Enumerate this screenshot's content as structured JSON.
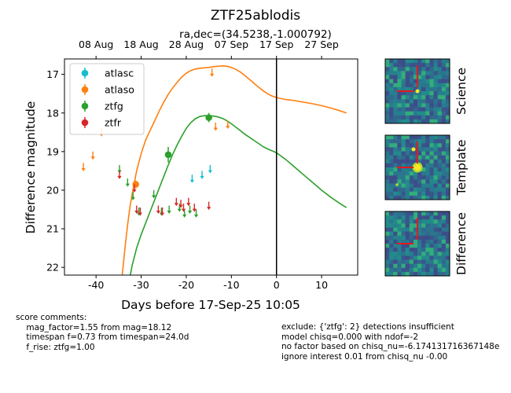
{
  "title": "ZTF25ablodis",
  "subtitle": "ra,dec=(34.5238,-1.000792)",
  "chart_data": {
    "type": "scatter",
    "title": "ZTF25ablodis",
    "subtitle": "ra,dec=(34.5238,-1.000792)",
    "xlabel": "Days before 17-Sep-25 10:05",
    "ylabel": "Difference magnitude",
    "xlim": [
      -47,
      18
    ],
    "ylim": [
      22.2,
      16.6
    ],
    "y_inverted": true,
    "x_ticks": [
      -40,
      -30,
      -20,
      -10,
      0,
      10
    ],
    "y_ticks": [
      17,
      18,
      19,
      20,
      21,
      22
    ],
    "top_axis": {
      "labels": [
        "08 Aug",
        "18 Aug",
        "28 Aug",
        "07 Sep",
        "17 Sep",
        "27 Sep"
      ],
      "positions": [
        -40,
        -30,
        -20,
        -10,
        0,
        10
      ]
    },
    "vline_x": 0,
    "legend": {
      "placement": "top-left",
      "entries": [
        {
          "name": "atlasc",
          "color": "#17becf"
        },
        {
          "name": "atlaso",
          "color": "#ff7f0e"
        },
        {
          "name": "ztfg",
          "color": "#2ca02c"
        },
        {
          "name": "ztfr",
          "color": "#d62728"
        }
      ]
    },
    "series": [
      {
        "name": "atlasc",
        "color": "#17becf",
        "detections": [],
        "upper_limits": [
          {
            "x": -18.7,
            "y": 19.7
          },
          {
            "x": -16.5,
            "y": 19.6
          },
          {
            "x": -14.7,
            "y": 19.45
          }
        ]
      },
      {
        "name": "atlaso",
        "color": "#ff7f0e",
        "detections": [
          {
            "x": -31.2,
            "y": 19.85,
            "err": 0.1
          }
        ],
        "upper_limits": [
          {
            "x": -42.8,
            "y": 19.4
          },
          {
            "x": -40.7,
            "y": 19.1
          },
          {
            "x": -38.8,
            "y": 18.5
          },
          {
            "x": -14.3,
            "y": 16.95
          },
          {
            "x": -13.5,
            "y": 18.35
          },
          {
            "x": -10.8,
            "y": 18.3
          }
        ]
      },
      {
        "name": "ztfg",
        "color": "#2ca02c",
        "detections": [
          {
            "x": -24.0,
            "y": 19.08,
            "err": 0.2
          },
          {
            "x": -15.0,
            "y": 18.12,
            "err": 0.12
          }
        ],
        "upper_limits": [
          {
            "x": -34.8,
            "y": 19.45
          },
          {
            "x": -33.0,
            "y": 19.8
          },
          {
            "x": -31.8,
            "y": 20.15
          },
          {
            "x": -30.5,
            "y": 20.55
          },
          {
            "x": -27.2,
            "y": 20.1
          },
          {
            "x": -25.5,
            "y": 20.55
          },
          {
            "x": -23.8,
            "y": 20.5
          },
          {
            "x": -21.5,
            "y": 20.45
          },
          {
            "x": -20.4,
            "y": 20.6
          },
          {
            "x": -19.2,
            "y": 20.5
          },
          {
            "x": -17.8,
            "y": 20.6
          }
        ]
      },
      {
        "name": "ztfr",
        "color": "#d62728",
        "detections": [],
        "upper_limits": [
          {
            "x": -34.8,
            "y": 19.6
          },
          {
            "x": -31.5,
            "y": 19.95
          },
          {
            "x": -31.0,
            "y": 20.5
          },
          {
            "x": -30.2,
            "y": 20.55
          },
          {
            "x": -26.2,
            "y": 20.5
          },
          {
            "x": -25.3,
            "y": 20.55
          },
          {
            "x": -22.2,
            "y": 20.3
          },
          {
            "x": -21.2,
            "y": 20.35
          },
          {
            "x": -20.6,
            "y": 20.45
          },
          {
            "x": -19.5,
            "y": 20.3
          },
          {
            "x": -18.2,
            "y": 20.45
          },
          {
            "x": -15.0,
            "y": 20.4
          }
        ]
      }
    ],
    "models": [
      {
        "name": "atlaso",
        "color": "#ff7f0e",
        "x": [
          -34.2,
          -33.5,
          -33,
          -32.5,
          -32,
          -31,
          -30,
          -29,
          -28,
          -27,
          -26,
          -25,
          -24,
          -23,
          -22,
          -21,
          -20,
          -19,
          -18,
          -17,
          -16,
          -15,
          -14,
          -13,
          -12,
          -11,
          -10,
          -9,
          -8,
          -7,
          -6,
          -5,
          -4,
          -3,
          -2,
          -1,
          0,
          2,
          4,
          6,
          8,
          10,
          12,
          14,
          15.5
        ],
        "y": [
          22.2,
          21.4,
          20.9,
          20.45,
          20.1,
          19.5,
          19.05,
          18.7,
          18.45,
          18.2,
          17.95,
          17.72,
          17.52,
          17.35,
          17.2,
          17.07,
          16.97,
          16.9,
          16.86,
          16.84,
          16.83,
          16.82,
          16.8,
          16.79,
          16.78,
          16.79,
          16.82,
          16.87,
          16.94,
          17.03,
          17.13,
          17.23,
          17.33,
          17.42,
          17.5,
          17.56,
          17.6,
          17.65,
          17.68,
          17.72,
          17.76,
          17.81,
          17.87,
          17.94,
          18.0
        ]
      },
      {
        "name": "ztfg",
        "color": "#2ca02c",
        "x": [
          -32.4,
          -32,
          -31,
          -30,
          -29,
          -28,
          -27,
          -26,
          -25,
          -24,
          -23,
          -22,
          -21,
          -20,
          -19,
          -18,
          -17,
          -16,
          -15,
          -14,
          -13,
          -12,
          -11,
          -10,
          -9,
          -8,
          -7,
          -6,
          -5,
          -4,
          -3,
          -2,
          -1,
          0,
          2,
          4,
          6,
          8,
          10,
          12,
          14,
          15.5
        ],
        "y": [
          22.2,
          21.95,
          21.5,
          21.15,
          20.85,
          20.55,
          20.25,
          19.95,
          19.65,
          19.35,
          19.07,
          18.82,
          18.6,
          18.4,
          18.25,
          18.15,
          18.09,
          18.07,
          18.07,
          18.08,
          18.1,
          18.14,
          18.2,
          18.28,
          18.37,
          18.46,
          18.55,
          18.63,
          18.71,
          18.79,
          18.87,
          18.93,
          18.98,
          19.03,
          19.2,
          19.4,
          19.6,
          19.8,
          20.0,
          20.18,
          20.34,
          20.45
        ]
      }
    ]
  },
  "thumbnails": [
    {
      "label": "Science"
    },
    {
      "label": "Template"
    },
    {
      "label": "Difference"
    }
  ],
  "comments_left": "score comments:\n    mag_factor=1.55 from mag=18.12\n    timespan f=0.73 from timespan=24.0d\n    f_rise: ztfg=1.00",
  "comments_right": "exclude: {'ztfg': 2} detections insufficient\nmodel chisq=0.000 with ndof=-2\nno factor based on chisq_nu=-6.174131716367148e\nignore interest 0.01 from chisq_nu -0.00"
}
